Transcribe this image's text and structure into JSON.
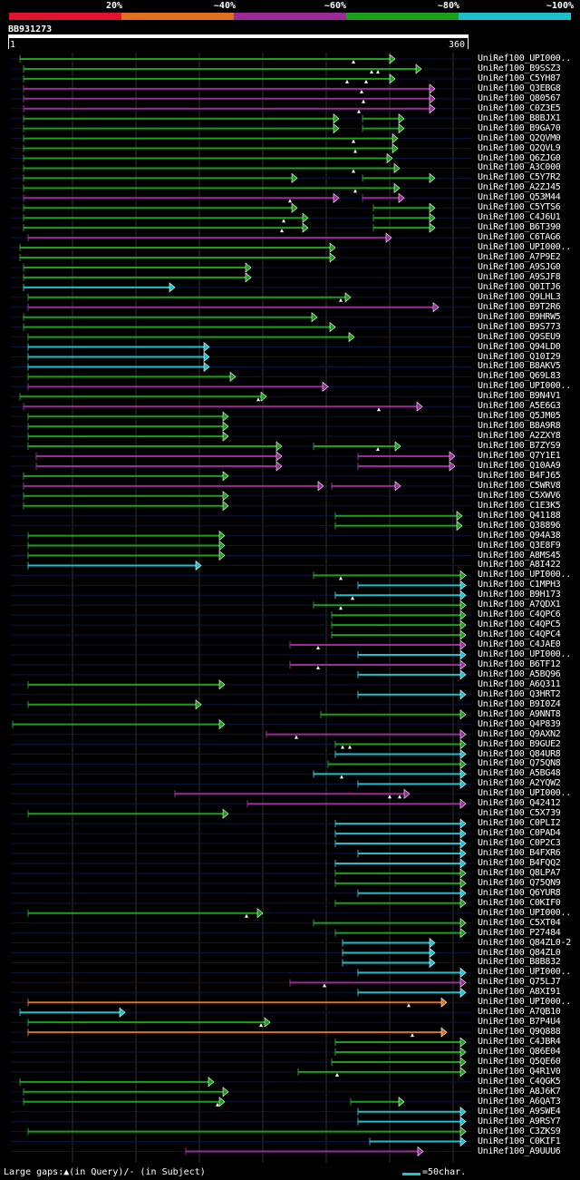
{
  "legend": {
    "labels": [
      "20%",
      "~40%",
      "~60%",
      "~80%",
      "~100%"
    ],
    "colors": [
      "#e0122c",
      "#e07020",
      "#9a2b9a",
      "#1ca01c",
      "#1cc0cc"
    ]
  },
  "query": {
    "id": "BB931273",
    "start": "1",
    "end": "360"
  },
  "hits": [
    {
      "label": "UniRef100_UPI000..",
      "c": 3,
      "s": [
        [
          22,
          436
        ]
      ],
      "g": [
        390
      ]
    },
    {
      "label": "UniRef100_B9SSZ3",
      "c": 3,
      "s": [
        [
          26,
          465
        ]
      ],
      "g": [
        410,
        417
      ]
    },
    {
      "label": "UniRef100_C5YH87",
      "c": 3,
      "s": [
        [
          26,
          436
        ]
      ],
      "g": [
        383,
        404
      ]
    },
    {
      "label": "UniRef100_Q3EBG8",
      "c": 2,
      "s": [
        [
          26,
          480
        ]
      ],
      "g": [
        399
      ]
    },
    {
      "label": "UniRef100_Q80567",
      "c": 2,
      "s": [
        [
          26,
          480
        ]
      ],
      "g": [
        401
      ]
    },
    {
      "label": "UniRef100_C0Z3E5",
      "c": 2,
      "s": [
        [
          26,
          480
        ]
      ],
      "g": [
        396
      ]
    },
    {
      "label": "UniRef100_B8BJX1",
      "c": 3,
      "s": [
        [
          26,
          374
        ],
        [
          400,
          446
        ]
      ],
      "g": []
    },
    {
      "label": "UniRef100_B9GA70",
      "c": 3,
      "s": [
        [
          26,
          374
        ],
        [
          400,
          446
        ]
      ],
      "g": []
    },
    {
      "label": "UniRef100_Q2QVM0",
      "c": 3,
      "s": [
        [
          26,
          439
        ]
      ],
      "g": [
        390
      ]
    },
    {
      "label": "UniRef100_Q2QVL9",
      "c": 3,
      "s": [
        [
          26,
          439
        ]
      ],
      "g": [
        392
      ]
    },
    {
      "label": "UniRef100_Q6ZJG0",
      "c": 3,
      "s": [
        [
          26,
          433
        ]
      ],
      "g": []
    },
    {
      "label": "UniRef100_A3C000",
      "c": 3,
      "s": [
        [
          26,
          441
        ]
      ],
      "g": [
        390
      ]
    },
    {
      "label": "UniRef100_C5Y7R2",
      "c": 3,
      "s": [
        [
          26,
          328
        ],
        [
          400,
          480
        ]
      ],
      "g": []
    },
    {
      "label": "UniRef100_A2ZJ45",
      "c": 3,
      "s": [
        [
          26,
          441
        ]
      ],
      "g": [
        392
      ]
    },
    {
      "label": "UniRef100_Q53M44",
      "c": 2,
      "s": [
        [
          26,
          374
        ],
        [
          400,
          446
        ]
      ],
      "g": [
        320
      ]
    },
    {
      "label": "UniRef100_C5YTS6",
      "c": 3,
      "s": [
        [
          26,
          328
        ],
        [
          412,
          480
        ]
      ],
      "g": []
    },
    {
      "label": "UniRef100_C4J6U1",
      "c": 3,
      "s": [
        [
          26,
          340
        ],
        [
          412,
          480
        ]
      ],
      "g": [
        313
      ]
    },
    {
      "label": "UniRef100_B6T390",
      "c": 3,
      "s": [
        [
          26,
          340
        ],
        [
          412,
          480
        ]
      ],
      "g": [
        311
      ]
    },
    {
      "label": "UniRef100_C6TAG6",
      "c": 2,
      "s": [
        [
          31,
          432
        ]
      ],
      "g": []
    },
    {
      "label": "UniRef100_UPI000..",
      "c": 3,
      "s": [
        [
          22,
          370
        ]
      ],
      "g": []
    },
    {
      "label": "UniRef100_A7P9E2",
      "c": 3,
      "s": [
        [
          22,
          370
        ]
      ],
      "g": []
    },
    {
      "label": "UniRef100_A9SJG0",
      "c": 3,
      "s": [
        [
          26,
          277
        ]
      ],
      "g": []
    },
    {
      "label": "UniRef100_A9SJF8",
      "c": 3,
      "s": [
        [
          26,
          277
        ]
      ],
      "g": []
    },
    {
      "label": "UniRef100_Q0ITJ6",
      "c": 4,
      "s": [
        [
          26,
          193
        ]
      ],
      "g": []
    },
    {
      "label": "UniRef100_Q9LHL3",
      "c": 3,
      "s": [
        [
          31,
          387
        ]
      ],
      "g": [
        376
      ]
    },
    {
      "label": "UniRef100_B9T2R6",
      "c": 2,
      "s": [
        [
          31,
          484
        ]
      ],
      "g": []
    },
    {
      "label": "UniRef100_B9HRW5",
      "c": 3,
      "s": [
        [
          26,
          350
        ]
      ],
      "g": []
    },
    {
      "label": "UniRef100_B9S773",
      "c": 3,
      "s": [
        [
          26,
          370
        ]
      ],
      "g": []
    },
    {
      "label": "UniRef100_Q9SEU9",
      "c": 3,
      "s": [
        [
          31,
          391
        ]
      ],
      "g": []
    },
    {
      "label": "UniRef100_Q94LD0",
      "c": 4,
      "s": [
        [
          31,
          231
        ]
      ],
      "g": []
    },
    {
      "label": "UniRef100_Q10I29",
      "c": 4,
      "s": [
        [
          31,
          231
        ]
      ],
      "g": []
    },
    {
      "label": "UniRef100_B8AKV5",
      "c": 4,
      "s": [
        [
          31,
          231
        ]
      ],
      "g": []
    },
    {
      "label": "UniRef100_Q69L83",
      "c": 3,
      "s": [
        [
          31,
          260
        ]
      ],
      "g": []
    },
    {
      "label": "UniRef100_UPI000..",
      "c": 2,
      "s": [
        [
          31,
          362
        ]
      ],
      "g": []
    },
    {
      "label": "UniRef100_B9N4V1",
      "c": 3,
      "s": [
        [
          22,
          294
        ]
      ],
      "g": [
        285
      ]
    },
    {
      "label": "UniRef100_A5E6G3",
      "c": 2,
      "s": [
        [
          26,
          466
        ]
      ],
      "g": [
        418
      ]
    },
    {
      "label": "UniRef100_Q5JM05",
      "c": 3,
      "s": [
        [
          31,
          252
        ]
      ],
      "g": []
    },
    {
      "label": "UniRef100_B8A9R8",
      "c": 3,
      "s": [
        [
          31,
          252
        ]
      ],
      "g": []
    },
    {
      "label": "UniRef100_A2ZXY8",
      "c": 3,
      "s": [
        [
          31,
          252
        ]
      ],
      "g": []
    },
    {
      "label": "UniRef100_B7ZYS9",
      "c": 3,
      "s": [
        [
          31,
          311
        ],
        [
          346,
          442
        ]
      ],
      "g": [
        417
      ]
    },
    {
      "label": "UniRef100_Q7Y1E1",
      "c": 2,
      "s": [
        [
          40,
          311
        ],
        [
          395,
          502
        ]
      ],
      "g": []
    },
    {
      "label": "UniRef100_Q10AA9",
      "c": 2,
      "s": [
        [
          40,
          311
        ],
        [
          395,
          502
        ]
      ],
      "g": []
    },
    {
      "label": "UniRef100_B4FJ65",
      "c": 3,
      "s": [
        [
          26,
          252
        ]
      ],
      "g": []
    },
    {
      "label": "UniRef100_C5WRV8",
      "c": 2,
      "s": [
        [
          26,
          357
        ],
        [
          366,
          442
        ]
      ],
      "g": []
    },
    {
      "label": "UniRef100_C5XWV6",
      "c": 3,
      "s": [
        [
          26,
          252
        ]
      ],
      "g": []
    },
    {
      "label": "UniRef100_C1E3K5",
      "c": 3,
      "s": [
        [
          26,
          252
        ]
      ],
      "g": []
    },
    {
      "label": "UniRef100_Q41188",
      "c": 3,
      "s": [
        [
          370,
          510
        ]
      ],
      "g": []
    },
    {
      "label": "UniRef100_Q38896",
      "c": 3,
      "s": [
        [
          370,
          510
        ]
      ],
      "g": []
    },
    {
      "label": "UniRef100_Q94A38",
      "c": 3,
      "s": [
        [
          31,
          248
        ]
      ],
      "g": []
    },
    {
      "label": "UniRef100_Q3E8F9",
      "c": 3,
      "s": [
        [
          31,
          248
        ]
      ],
      "g": []
    },
    {
      "label": "UniRef100_A8MS45",
      "c": 3,
      "s": [
        [
          31,
          248
        ]
      ],
      "g": []
    },
    {
      "label": "UniRef100_A8I422",
      "c": 4,
      "s": [
        [
          31,
          222
        ]
      ],
      "g": []
    },
    {
      "label": "UniRef100_UPI000..",
      "c": 3,
      "s": [
        [
          346,
          514
        ]
      ],
      "g": [
        376
      ]
    },
    {
      "label": "UniRef100_C1MPH3",
      "c": 4,
      "s": [
        [
          395,
          514
        ]
      ],
      "g": []
    },
    {
      "label": "UniRef100_B9H173",
      "c": 4,
      "s": [
        [
          370,
          514
        ]
      ],
      "g": [
        389
      ]
    },
    {
      "label": "UniRef100_A7QDX1",
      "c": 3,
      "s": [
        [
          346,
          514
        ]
      ],
      "g": [
        376
      ]
    },
    {
      "label": "UniRef100_C4QPC6",
      "c": 3,
      "s": [
        [
          366,
          514
        ]
      ],
      "g": []
    },
    {
      "label": "UniRef100_C4QPC5",
      "c": 3,
      "s": [
        [
          366,
          514
        ]
      ],
      "g": []
    },
    {
      "label": "UniRef100_C4QPC4",
      "c": 3,
      "s": [
        [
          366,
          514
        ]
      ],
      "g": []
    },
    {
      "label": "UniRef100_C4JAE0",
      "c": 2,
      "s": [
        [
          320,
          514
        ]
      ],
      "g": [
        351
      ]
    },
    {
      "label": "UniRef100_UPI000..",
      "c": 4,
      "s": [
        [
          395,
          514
        ]
      ],
      "g": []
    },
    {
      "label": "UniRef100_B6TF12",
      "c": 2,
      "s": [
        [
          320,
          514
        ]
      ],
      "g": [
        351
      ]
    },
    {
      "label": "UniRef100_A5BQ96",
      "c": 4,
      "s": [
        [
          395,
          514
        ]
      ],
      "g": []
    },
    {
      "label": "UniRef100_A6Q311",
      "c": 3,
      "s": [
        [
          31,
          248
        ]
      ],
      "g": []
    },
    {
      "label": "UniRef100_Q3HRT2",
      "c": 4,
      "s": [
        [
          395,
          514
        ]
      ],
      "g": []
    },
    {
      "label": "UniRef100_B9I0Z4",
      "c": 3,
      "s": [
        [
          31,
          222
        ]
      ],
      "g": []
    },
    {
      "label": "UniRef100_A9NNT8",
      "c": 3,
      "s": [
        [
          354,
          514
        ]
      ],
      "g": []
    },
    {
      "label": "UniRef100_Q4P839",
      "c": 3,
      "s": [
        [
          14,
          248
        ]
      ],
      "g": []
    },
    {
      "label": "UniRef100_Q9AXN2",
      "c": 2,
      "s": [
        [
          294,
          514
        ]
      ],
      "g": [
        327
      ]
    },
    {
      "label": "UniRef100_B9GUE2",
      "c": 3,
      "s": [
        [
          370,
          514
        ]
      ],
      "g": [
        378,
        386
      ]
    },
    {
      "label": "UniRef100_Q84UR8",
      "c": 4,
      "s": [
        [
          370,
          514
        ]
      ],
      "g": []
    },
    {
      "label": "UniRef100_Q75QN8",
      "c": 3,
      "s": [
        [
          362,
          514
        ]
      ],
      "g": []
    },
    {
      "label": "UniRef100_A5BG48",
      "c": 4,
      "s": [
        [
          346,
          514
        ]
      ],
      "g": [
        377
      ]
    },
    {
      "label": "UniRef100_A2YQW2",
      "c": 4,
      "s": [
        [
          395,
          514
        ]
      ],
      "g": []
    },
    {
      "label": "UniRef100_UPI000..",
      "c": 2,
      "s": [
        [
          193,
          452
        ]
      ],
      "g": [
        430,
        441
      ]
    },
    {
      "label": "UniRef100_Q42412",
      "c": 2,
      "s": [
        [
          273,
          514
        ]
      ],
      "g": []
    },
    {
      "label": "UniRef100_C5X739",
      "c": 3,
      "s": [
        [
          31,
          252
        ]
      ],
      "g": []
    },
    {
      "label": "UniRef100_C0PLI2",
      "c": 4,
      "s": [
        [
          370,
          514
        ]
      ],
      "g": []
    },
    {
      "label": "UniRef100_C0PAD4",
      "c": 4,
      "s": [
        [
          370,
          514
        ]
      ],
      "g": []
    },
    {
      "label": "UniRef100_C0P2C3",
      "c": 4,
      "s": [
        [
          370,
          514
        ]
      ],
      "g": []
    },
    {
      "label": "UniRef100_B4FXR6",
      "c": 4,
      "s": [
        [
          395,
          514
        ]
      ],
      "g": []
    },
    {
      "label": "UniRef100_B4FQQ2",
      "c": 4,
      "s": [
        [
          370,
          514
        ]
      ],
      "g": []
    },
    {
      "label": "UniRef100_Q8LPA7",
      "c": 3,
      "s": [
        [
          370,
          514
        ]
      ],
      "g": []
    },
    {
      "label": "UniRef100_Q75QN9",
      "c": 3,
      "s": [
        [
          370,
          514
        ]
      ],
      "g": []
    },
    {
      "label": "UniRef100_Q6YUR8",
      "c": 4,
      "s": [
        [
          395,
          514
        ]
      ],
      "g": []
    },
    {
      "label": "UniRef100_C0KIF0",
      "c": 3,
      "s": [
        [
          370,
          514
        ]
      ],
      "g": []
    },
    {
      "label": "UniRef100_UPI000..",
      "c": 3,
      "s": [
        [
          31,
          290
        ]
      ],
      "g": [
        272
      ]
    },
    {
      "label": "UniRef100_C5XT04",
      "c": 3,
      "s": [
        [
          346,
          514
        ]
      ],
      "g": []
    },
    {
      "label": "UniRef100_P27484",
      "c": 3,
      "s": [
        [
          370,
          514
        ]
      ],
      "g": []
    },
    {
      "label": "UniRef100_Q84ZL0-2",
      "c": 4,
      "s": [
        [
          378,
          480
        ]
      ],
      "g": []
    },
    {
      "label": "UniRef100_Q84ZL0",
      "c": 4,
      "s": [
        [
          378,
          480
        ]
      ],
      "g": []
    },
    {
      "label": "UniRef100_B8B832",
      "c": 4,
      "s": [
        [
          378,
          480
        ]
      ],
      "g": []
    },
    {
      "label": "UniRef100_UPI000..",
      "c": 4,
      "s": [
        [
          395,
          514
        ]
      ],
      "g": []
    },
    {
      "label": "UniRef100_Q75LJ7",
      "c": 2,
      "s": [
        [
          320,
          514
        ]
      ],
      "g": [
        358
      ]
    },
    {
      "label": "UniRef100_A8XI91",
      "c": 4,
      "s": [
        [
          395,
          514
        ]
      ],
      "g": []
    },
    {
      "label": "UniRef100_UPI000..",
      "c": 1,
      "s": [
        [
          31,
          493
        ]
      ],
      "g": [
        451
      ]
    },
    {
      "label": "UniRef100_A7QB10",
      "c": 4,
      "s": [
        [
          22,
          138
        ]
      ],
      "g": []
    },
    {
      "label": "UniRef100_B7P4U4",
      "c": 3,
      "s": [
        [
          31,
          298
        ]
      ],
      "g": [
        288
      ]
    },
    {
      "label": "UniRef100_Q9Q888",
      "c": 1,
      "s": [
        [
          31,
          493
        ]
      ],
      "g": [
        455
      ]
    },
    {
      "label": "UniRef100_C4JBR4",
      "c": 3,
      "s": [
        [
          370,
          514
        ]
      ],
      "g": []
    },
    {
      "label": "UniRef100_Q86E04",
      "c": 3,
      "s": [
        [
          370,
          514
        ]
      ],
      "g": []
    },
    {
      "label": "UniRef100_Q5QE60",
      "c": 3,
      "s": [
        [
          366,
          514
        ]
      ],
      "g": []
    },
    {
      "label": "UniRef100_Q4R1V0",
      "c": 3,
      "s": [
        [
          329,
          514
        ]
      ],
      "g": [
        372
      ]
    },
    {
      "label": "UniRef100_C4QGK5",
      "c": 3,
      "s": [
        [
          22,
          236
        ]
      ],
      "g": []
    },
    {
      "label": "UniRef100_A8J6K7",
      "c": 3,
      "s": [
        [
          26,
          252
        ]
      ],
      "g": []
    },
    {
      "label": "UniRef100_A6QAT3",
      "c": 3,
      "s": [
        [
          26,
          248
        ],
        [
          387,
          446
        ]
      ],
      "g": [
        240
      ]
    },
    {
      "label": "UniRef100_A9SWE4",
      "c": 4,
      "s": [
        [
          395,
          514
        ]
      ],
      "g": []
    },
    {
      "label": "UniRef100_A9RSY7",
      "c": 4,
      "s": [
        [
          395,
          514
        ]
      ],
      "g": []
    },
    {
      "label": "UniRef100_C3ZKS9",
      "c": 3,
      "s": [
        [
          31,
          514
        ]
      ],
      "g": []
    },
    {
      "label": "UniRef100_C0KIF1",
      "c": 4,
      "s": [
        [
          408,
          514
        ]
      ],
      "g": []
    },
    {
      "label": "UniRef100_A9UUU6",
      "c": 2,
      "s": [
        [
          205,
          467
        ]
      ],
      "g": []
    }
  ],
  "footer": {
    "large_gaps": "Large gaps:▲(in Query)/- (in Subject)",
    "scale": "=50char."
  }
}
